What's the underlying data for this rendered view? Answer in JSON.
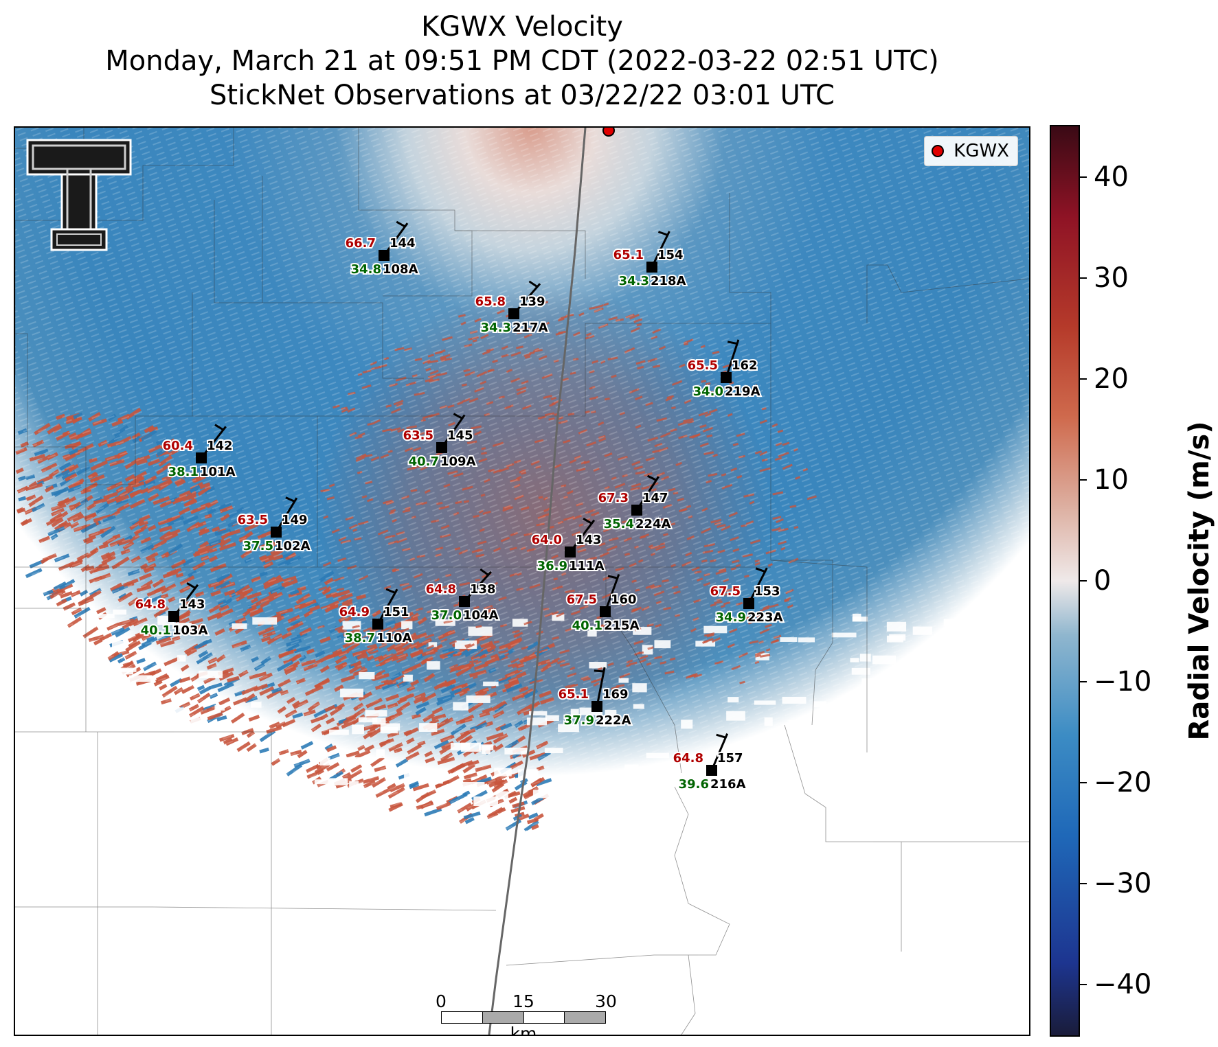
{
  "title": {
    "line1": "KGWX Velocity",
    "line2": "Monday, March 21 at 09:51 PM CDT (2022-03-22 02:51 UTC)",
    "line3": "StickNet Observations at 03/22/22 03:01 UTC"
  },
  "legend": {
    "label": "KGWX",
    "marker_color": "#e00000"
  },
  "colorbar": {
    "title": "Radial Velocity (m/s)",
    "ticks": [
      "40",
      "30",
      "20",
      "10",
      "0",
      "−10",
      "−20",
      "−30",
      "−40"
    ],
    "values": [
      40,
      30,
      20,
      10,
      0,
      -10,
      -20,
      -30,
      -40
    ],
    "range": [
      -45,
      45
    ]
  },
  "scale_bar": {
    "ticks": [
      "0",
      "15",
      "30"
    ],
    "unit": "km"
  },
  "colors": {
    "temperature": "#b00000",
    "dewpoint": "#006400",
    "inbound": "#2c7bb6",
    "outbound": "#c8553d",
    "radar_marker": "#e00000"
  },
  "stations": [
    {
      "id": "108A",
      "temp": "66.7",
      "dew": "34.8",
      "dir": "144"
    },
    {
      "id": "218A",
      "temp": "65.1",
      "dew": "34.3",
      "dir": "154"
    },
    {
      "id": "217A",
      "temp": "65.8",
      "dew": "34.3",
      "dir": "139"
    },
    {
      "id": "219A",
      "temp": "65.5",
      "dew": "34.0",
      "dir": "162"
    },
    {
      "id": "101A",
      "temp": "60.4",
      "dew": "38.1",
      "dir": "142"
    },
    {
      "id": "109A",
      "temp": "63.5",
      "dew": "40.7",
      "dir": "145"
    },
    {
      "id": "224A",
      "temp": "67.3",
      "dew": "35.4",
      "dir": "147"
    },
    {
      "id": "102A",
      "temp": "63.5",
      "dew": "37.5",
      "dir": "149"
    },
    {
      "id": "111A",
      "temp": "64.0",
      "dew": "36.9",
      "dir": "143"
    },
    {
      "id": "104A",
      "temp": "64.8",
      "dew": "37.0",
      "dir": "138"
    },
    {
      "id": "215A",
      "temp": "67.5",
      "dew": "40.1",
      "dir": "160"
    },
    {
      "id": "223A",
      "temp": "67.5",
      "dew": "34.9",
      "dir": "153"
    },
    {
      "id": "103A",
      "temp": "64.8",
      "dew": "40.1",
      "dir": "143"
    },
    {
      "id": "110A",
      "temp": "64.9",
      "dew": "38.7",
      "dir": "151"
    },
    {
      "id": "222A",
      "temp": "65.1",
      "dew": "37.9",
      "dir": "169"
    },
    {
      "id": "216A",
      "temp": "64.8",
      "dew": "39.6",
      "dir": "157"
    }
  ]
}
